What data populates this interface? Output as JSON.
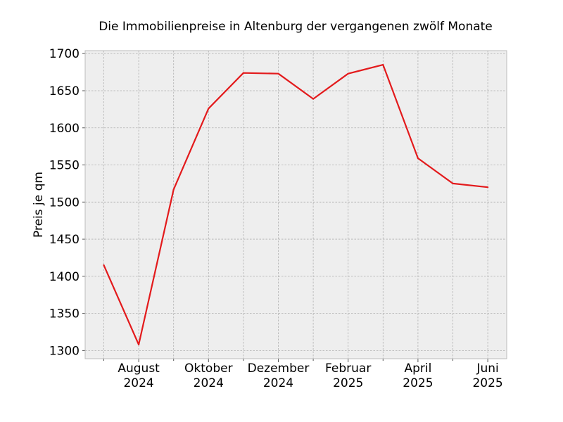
{
  "chart_data": {
    "type": "line",
    "title": "Die Immobilienpreise in Altenburg der vergangenen zwölf Monate",
    "xlabel": "",
    "ylabel": "Preis je qm",
    "x": [
      "2024-07",
      "2024-08",
      "2024-09",
      "2024-10",
      "2024-11",
      "2024-12",
      "2025-01",
      "2025-02",
      "2025-03",
      "2025-04",
      "2025-05",
      "2025-06"
    ],
    "x_ticks": [
      {
        "x": "2024-08",
        "label": [
          "August",
          "2024"
        ]
      },
      {
        "x": "2024-10",
        "label": [
          "Oktober",
          "2024"
        ]
      },
      {
        "x": "2024-12",
        "label": [
          "Dezember",
          "2024"
        ]
      },
      {
        "x": "2025-02",
        "label": [
          "Februar",
          "2025"
        ]
      },
      {
        "x": "2025-04",
        "label": [
          "April",
          "2025"
        ]
      },
      {
        "x": "2025-06",
        "label": [
          "Juni",
          "2025"
        ]
      }
    ],
    "minor_ticks": [
      "2024-07",
      "2024-09",
      "2024-11",
      "2025-01",
      "2025-03",
      "2025-05"
    ],
    "series": [
      {
        "values": [
          1415,
          1308,
          1517,
          1626,
          1674,
          1673,
          1639,
          1673,
          1685,
          1559,
          1525,
          1520
        ],
        "color": "#e31a1c"
      }
    ],
    "ylim": [
      1289,
      1704
    ],
    "yticks": [
      1300,
      1350,
      1400,
      1450,
      1500,
      1550,
      1600,
      1650,
      1700
    ],
    "grid": true,
    "legend": "none"
  },
  "colors": {
    "plot_background": "#eeeeee",
    "grid": "#b0b0b0",
    "frame": "#bcbcbc",
    "line": "#e31a1c"
  }
}
